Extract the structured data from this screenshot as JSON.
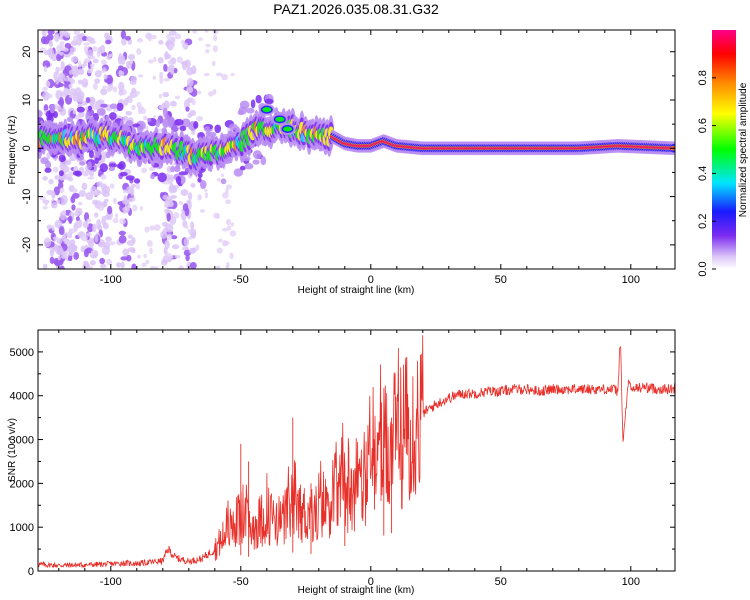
{
  "figure": {
    "title": "PAZ1.2026.035.08.31.G32"
  },
  "chart_data": [
    {
      "type": "heatmap",
      "name": "spectrogram",
      "title": "PAZ1.2026.035.08.31.G32",
      "xlabel": "Height of straight line (km)",
      "ylabel": "Frequency (Hz)",
      "xlim": [
        -128,
        117
      ],
      "ylim": [
        -25,
        24.5
      ],
      "x_ticks": [
        -100,
        -50,
        0,
        50,
        100
      ],
      "y_ticks": [
        -20,
        -10,
        0,
        10,
        20
      ],
      "dominant_frequency_track": [
        {
          "x": -128,
          "f": 2.5
        },
        {
          "x": -115,
          "f": 1.5
        },
        {
          "x": -105,
          "f": 2.5
        },
        {
          "x": -100,
          "f": 2.5
        },
        {
          "x": -95,
          "f": 1.5
        },
        {
          "x": -90,
          "f": 0.0
        },
        {
          "x": -85,
          "f": 0.0
        },
        {
          "x": -78,
          "f": 0.5
        },
        {
          "x": -72,
          "f": -1.0
        },
        {
          "x": -65,
          "f": -1.5
        },
        {
          "x": -58,
          "f": -0.5
        },
        {
          "x": -52,
          "f": 0.5
        },
        {
          "x": -45,
          "f": 3.5
        },
        {
          "x": -38,
          "f": 4.5
        },
        {
          "x": -30,
          "f": 4.0
        },
        {
          "x": -22,
          "f": 2.5
        },
        {
          "x": -15,
          "f": 2.5
        },
        {
          "x": -10,
          "f": 1.0
        },
        {
          "x": -5,
          "f": 0.5
        },
        {
          "x": 0,
          "f": 0.5
        },
        {
          "x": 5,
          "f": 1.5
        },
        {
          "x": 10,
          "f": 0.5
        },
        {
          "x": 20,
          "f": 0.0
        },
        {
          "x": 50,
          "f": 0.0
        },
        {
          "x": 80,
          "f": 0.0
        },
        {
          "x": 95,
          "f": 0.5
        },
        {
          "x": 117,
          "f": 0.0
        }
      ],
      "secondary_peaks": [
        {
          "x": -40,
          "f": 8
        },
        {
          "x": -35,
          "f": 6
        },
        {
          "x": -32,
          "f": 4
        }
      ],
      "colorbar": {
        "label": "Normalized spectral amplitude",
        "range": [
          0,
          1
        ],
        "ticks": [
          "0.0",
          "0.2",
          "0.4",
          "0.6",
          "0.8"
        ],
        "colormap": [
          "#e8d8f8",
          "#7b2bf0",
          "#1a1aff",
          "#00e5ff",
          "#00ff00",
          "#ffff00",
          "#ff8800",
          "#ff0000",
          "#ff0088"
        ]
      }
    },
    {
      "type": "line",
      "name": "snr",
      "xlabel": "Height of straight line (km)",
      "ylabel": "SNR (10 * v/v)",
      "xlim": [
        -128,
        117
      ],
      "ylim": [
        0,
        5500
      ],
      "x_ticks": [
        -100,
        -50,
        0,
        50,
        100
      ],
      "y_ticks": [
        0,
        1000,
        2000,
        3000,
        4000,
        5000
      ],
      "color": "#e8302a",
      "series": [
        {
          "name": "SNR",
          "x": [
            -128,
            -120,
            -110,
            -100,
            -95,
            -90,
            -85,
            -80,
            -78,
            -75,
            -70,
            -65,
            -60,
            -55,
            -50,
            -45,
            -40,
            -35,
            -30,
            -25,
            -20,
            -15,
            -10,
            -5,
            0,
            5,
            10,
            15,
            20,
            25,
            30,
            35,
            40,
            45,
            50,
            55,
            60,
            65,
            70,
            75,
            80,
            85,
            90,
            93,
            95,
            96,
            97,
            99,
            100,
            105,
            110,
            117
          ],
          "y": [
            150,
            130,
            140,
            160,
            180,
            170,
            200,
            230,
            500,
            300,
            220,
            280,
            500,
            900,
            1200,
            1000,
            1300,
            1100,
            1400,
            1300,
            1300,
            1700,
            1900,
            2000,
            2300,
            2700,
            3000,
            3300,
            3600,
            3800,
            3950,
            4050,
            4050,
            4100,
            4100,
            4150,
            4150,
            4100,
            4150,
            4150,
            4150,
            4150,
            4150,
            4150,
            4100,
            5300,
            2900,
            4300,
            4150,
            4200,
            4150,
            4150
          ]
        }
      ],
      "spikes": [
        {
          "x": -50,
          "y": 2900
        },
        {
          "x": -47,
          "y": 2500
        },
        {
          "x": -30,
          "y": 3500
        },
        {
          "x": -23,
          "y": 2000
        },
        {
          "x": -10,
          "y": 2500
        },
        {
          "x": 5,
          "y": 3200
        },
        {
          "x": 8,
          "y": 3500
        }
      ]
    }
  ]
}
